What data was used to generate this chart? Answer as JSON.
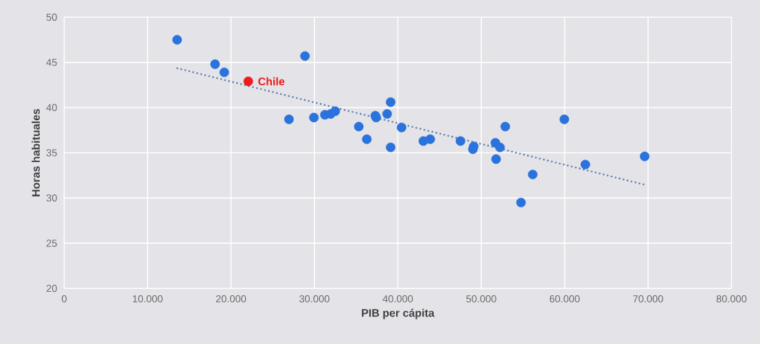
{
  "chart_data": {
    "type": "scatter",
    "xlabel": "PIB per cápita",
    "ylabel": "Horas habituales",
    "xlim": [
      0,
      80000
    ],
    "ylim": [
      20,
      50
    ],
    "xticks": [
      0,
      {
        "value": 10000,
        "label": "10.000"
      },
      {
        "value": 20000,
        "label": "20.000"
      },
      {
        "value": 30000,
        "label": "30.000"
      },
      {
        "value": 40000,
        "label": "40.000"
      },
      {
        "value": 50000,
        "label": "50.000"
      },
      {
        "value": 60000,
        "label": "60.000"
      },
      {
        "value": 70000,
        "label": "70.000"
      },
      {
        "value": 80000,
        "label": "80.000"
      }
    ],
    "yticks": [
      20,
      25,
      30,
      35,
      40,
      45,
      50
    ],
    "grid": true,
    "series": [
      {
        "marker": "circle",
        "color": "#2a72dc",
        "x": [
          13540,
          18090,
          19190,
          28870,
          26950,
          29940,
          31260,
          31950,
          32500,
          37300,
          37400,
          38720,
          39140,
          35320,
          36280,
          39140,
          40450,
          43060,
          43880,
          47510,
          49100,
          49000,
          51700,
          52250,
          52880,
          51780,
          56170,
          54770,
          59960,
          62480,
          69590
        ],
        "values": [
          47.5,
          44.8,
          43.9,
          45.7,
          38.7,
          38.9,
          39.2,
          39.3,
          39.6,
          39.1,
          38.9,
          39.3,
          40.6,
          37.9,
          36.5,
          35.6,
          37.8,
          36.3,
          36.5,
          36.3,
          35.7,
          35.4,
          36.1,
          35.6,
          37.9,
          34.3,
          32.6,
          29.5,
          38.7,
          33.7,
          34.6
        ]
      },
      {
        "marker": "circle",
        "name": "Chile",
        "color": "#ee1c1c",
        "x": [
          22070
        ],
        "values": [
          42.9
        ]
      },
      {
        "type": "line",
        "color": "#5f7fae",
        "line_style": "dotted",
        "marker": "none",
        "x": [
          13560,
          69450
        ],
        "values": [
          44.35,
          31.5
        ]
      }
    ]
  }
}
